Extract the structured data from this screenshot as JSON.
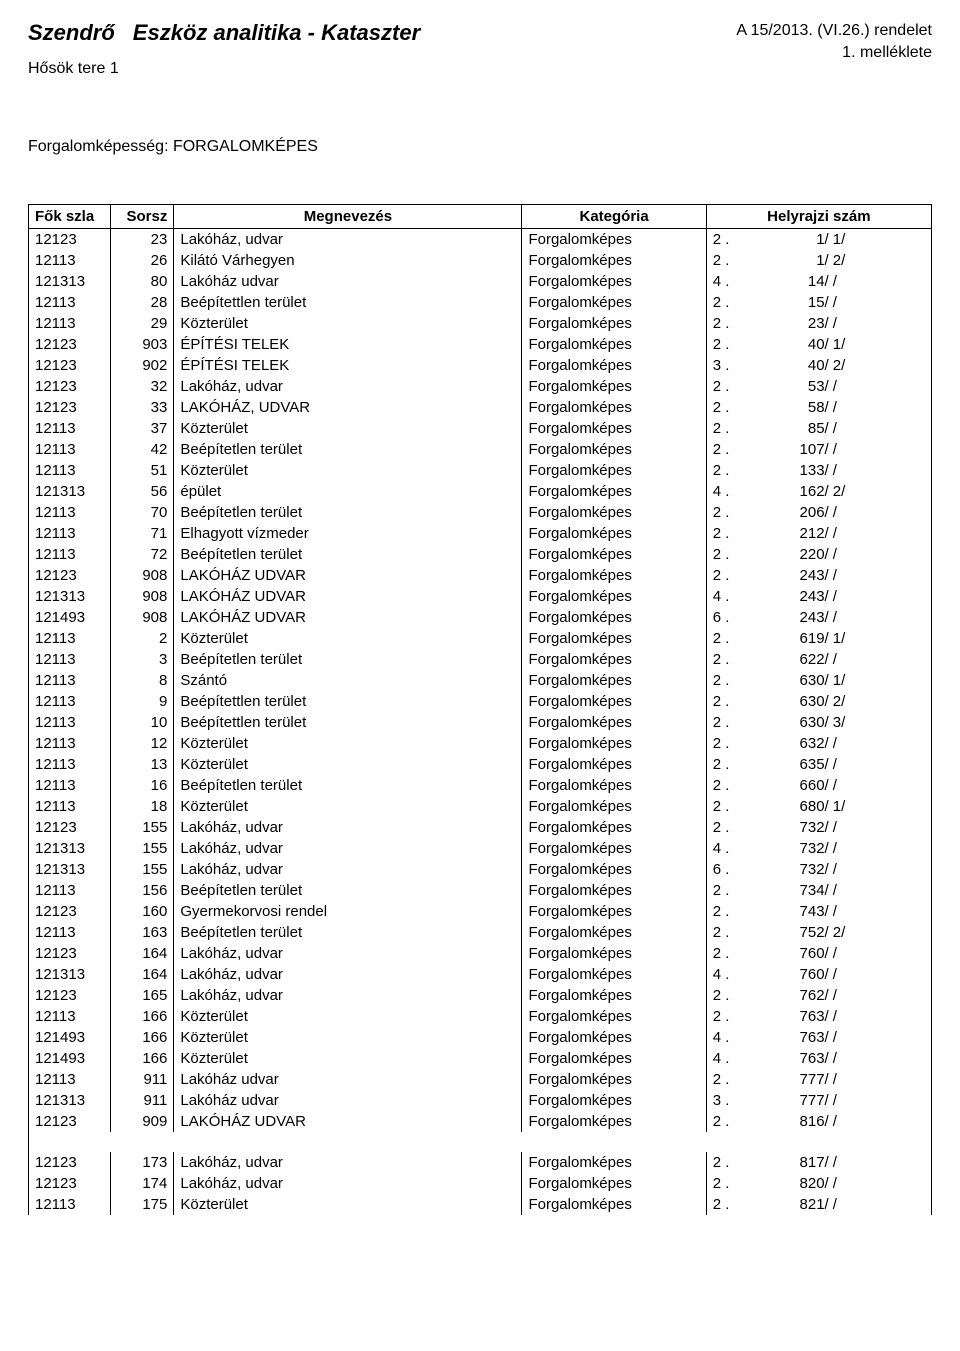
{
  "header": {
    "city": "Szendrő",
    "title": "Eszköz analitika - Kataszter",
    "subtitle": "Hősök tere 1",
    "ordinance_line1": "A 15/2013. (VI.26.) rendelet",
    "ordinance_line2": "1. melléklete"
  },
  "section": {
    "label": "Forgalomképesség: FORGALOMKÉPES"
  },
  "columns": [
    "Fők szla",
    "Sorsz",
    "Megnevezés",
    "Kategória",
    "Helyrajzi szám"
  ],
  "rows": [
    {
      "fok": "12123",
      "sorsz": "23",
      "meg": "Lakóház, udvar",
      "kat": "Forgalomképes",
      "h1": "2 .",
      "h2": "1/",
      "h3": "1/"
    },
    {
      "fok": "12113",
      "sorsz": "26",
      "meg": "Kilátó Várhegyen",
      "kat": "Forgalomképes",
      "h1": "2 .",
      "h2": "1/",
      "h3": "2/"
    },
    {
      "fok": "121313",
      "sorsz": "80",
      "meg": "Lakóház udvar",
      "kat": "Forgalomképes",
      "h1": "4 .",
      "h2": "14/",
      "h3": "/"
    },
    {
      "fok": "12113",
      "sorsz": "28",
      "meg": "Beépítettlen terület",
      "kat": "Forgalomképes",
      "h1": "2 .",
      "h2": "15/",
      "h3": "/"
    },
    {
      "fok": "12113",
      "sorsz": "29",
      "meg": "Közterület",
      "kat": "Forgalomképes",
      "h1": "2 .",
      "h2": "23/",
      "h3": "/"
    },
    {
      "fok": "12123",
      "sorsz": "903",
      "meg": "ÉPÍTÉSI TELEK",
      "kat": "Forgalomképes",
      "h1": "2 .",
      "h2": "40/",
      "h3": "1/"
    },
    {
      "fok": "12123",
      "sorsz": "902",
      "meg": "ÉPÍTÉSI TELEK",
      "kat": "Forgalomképes",
      "h1": "3 .",
      "h2": "40/",
      "h3": "2/"
    },
    {
      "fok": "12123",
      "sorsz": "32",
      "meg": "Lakóház, udvar",
      "kat": "Forgalomképes",
      "h1": "2 .",
      "h2": "53/",
      "h3": "/"
    },
    {
      "fok": "12123",
      "sorsz": "33",
      "meg": "LAKÓHÁZ, UDVAR",
      "kat": "Forgalomképes",
      "h1": "2 .",
      "h2": "58/",
      "h3": "/"
    },
    {
      "fok": "12113",
      "sorsz": "37",
      "meg": "Közterület",
      "kat": "Forgalomképes",
      "h1": "2 .",
      "h2": "85/",
      "h3": "/"
    },
    {
      "fok": "12113",
      "sorsz": "42",
      "meg": "Beépítetlen terület",
      "kat": "Forgalomképes",
      "h1": "2 .",
      "h2": "107/",
      "h3": "/"
    },
    {
      "fok": "12113",
      "sorsz": "51",
      "meg": "Közterület",
      "kat": "Forgalomképes",
      "h1": "2 .",
      "h2": "133/",
      "h3": "/"
    },
    {
      "fok": "121313",
      "sorsz": "56",
      "meg": "épület",
      "kat": "Forgalomképes",
      "h1": "4 .",
      "h2": "162/",
      "h3": "2/"
    },
    {
      "fok": "12113",
      "sorsz": "70",
      "meg": "Beépítetlen terület",
      "kat": "Forgalomképes",
      "h1": "2 .",
      "h2": "206/",
      "h3": "/"
    },
    {
      "fok": "12113",
      "sorsz": "71",
      "meg": "Elhagyott vízmeder",
      "kat": "Forgalomképes",
      "h1": "2 .",
      "h2": "212/",
      "h3": "/"
    },
    {
      "fok": "12113",
      "sorsz": "72",
      "meg": "Beépítetlen terület",
      "kat": "Forgalomképes",
      "h1": "2 .",
      "h2": "220/",
      "h3": "/"
    },
    {
      "fok": "12123",
      "sorsz": "908",
      "meg": "LAKÓHÁZ UDVAR",
      "kat": "Forgalomképes",
      "h1": "2 .",
      "h2": "243/",
      "h3": "/"
    },
    {
      "fok": "121313",
      "sorsz": "908",
      "meg": "LAKÓHÁZ UDVAR",
      "kat": "Forgalomképes",
      "h1": "4 .",
      "h2": "243/",
      "h3": "/"
    },
    {
      "fok": "121493",
      "sorsz": "908",
      "meg": "LAKÓHÁZ UDVAR",
      "kat": "Forgalomképes",
      "h1": "6 .",
      "h2": "243/",
      "h3": "/"
    },
    {
      "fok": "12113",
      "sorsz": "2",
      "meg": "Közterület",
      "kat": "Forgalomképes",
      "h1": "2 .",
      "h2": "619/",
      "h3": "1/"
    },
    {
      "fok": "12113",
      "sorsz": "3",
      "meg": "Beépítetlen terület",
      "kat": "Forgalomképes",
      "h1": "2 .",
      "h2": "622/",
      "h3": "/"
    },
    {
      "fok": "12113",
      "sorsz": "8",
      "meg": "Szántó",
      "kat": "Forgalomképes",
      "h1": "2 .",
      "h2": "630/",
      "h3": "1/"
    },
    {
      "fok": "12113",
      "sorsz": "9",
      "meg": "Beépítettlen terület",
      "kat": "Forgalomképes",
      "h1": "2 .",
      "h2": "630/",
      "h3": "2/"
    },
    {
      "fok": "12113",
      "sorsz": "10",
      "meg": "Beépítettlen terület",
      "kat": "Forgalomképes",
      "h1": "2 .",
      "h2": "630/",
      "h3": "3/"
    },
    {
      "fok": "12113",
      "sorsz": "12",
      "meg": "Közterület",
      "kat": "Forgalomképes",
      "h1": "2 .",
      "h2": "632/",
      "h3": "/"
    },
    {
      "fok": "12113",
      "sorsz": "13",
      "meg": "Közterület",
      "kat": "Forgalomképes",
      "h1": "2 .",
      "h2": "635/",
      "h3": "/"
    },
    {
      "fok": "12113",
      "sorsz": "16",
      "meg": "Beépítetlen terület",
      "kat": "Forgalomképes",
      "h1": "2 .",
      "h2": "660/",
      "h3": "/"
    },
    {
      "fok": "12113",
      "sorsz": "18",
      "meg": "Közterület",
      "kat": "Forgalomképes",
      "h1": "2 .",
      "h2": "680/",
      "h3": "1/"
    },
    {
      "fok": "12123",
      "sorsz": "155",
      "meg": "Lakóház, udvar",
      "kat": "Forgalomképes",
      "h1": "2 .",
      "h2": "732/",
      "h3": "/"
    },
    {
      "fok": "121313",
      "sorsz": "155",
      "meg": "Lakóház, udvar",
      "kat": "Forgalomképes",
      "h1": "4 .",
      "h2": "732/",
      "h3": "/"
    },
    {
      "fok": "121313",
      "sorsz": "155",
      "meg": "Lakóház, udvar",
      "kat": "Forgalomképes",
      "h1": "6 .",
      "h2": "732/",
      "h3": "/"
    },
    {
      "fok": "12113",
      "sorsz": "156",
      "meg": "Beépítetlen terület",
      "kat": "Forgalomképes",
      "h1": "2 .",
      "h2": "734/",
      "h3": "/"
    },
    {
      "fok": "12123",
      "sorsz": "160",
      "meg": "Gyermekorvosi rendel",
      "kat": "Forgalomképes",
      "h1": "2 .",
      "h2": "743/",
      "h3": "/"
    },
    {
      "fok": "12113",
      "sorsz": "163",
      "meg": "Beépítetlen terület",
      "kat": "Forgalomképes",
      "h1": "2 .",
      "h2": "752/",
      "h3": "2/"
    },
    {
      "fok": "12123",
      "sorsz": "164",
      "meg": "Lakóház, udvar",
      "kat": "Forgalomképes",
      "h1": "2 .",
      "h2": "760/",
      "h3": "/"
    },
    {
      "fok": "121313",
      "sorsz": "164",
      "meg": "Lakóház, udvar",
      "kat": "Forgalomképes",
      "h1": "4 .",
      "h2": "760/",
      "h3": "/"
    },
    {
      "fok": "12123",
      "sorsz": "165",
      "meg": "Lakóház, udvar",
      "kat": "Forgalomképes",
      "h1": "2 .",
      "h2": "762/",
      "h3": "/"
    },
    {
      "fok": "12113",
      "sorsz": "166",
      "meg": "Közterület",
      "kat": "Forgalomképes",
      "h1": "2 .",
      "h2": "763/",
      "h3": "/"
    },
    {
      "fok": "121493",
      "sorsz": "166",
      "meg": "Közterület",
      "kat": "Forgalomképes",
      "h1": "4 .",
      "h2": "763/",
      "h3": "/"
    },
    {
      "fok": "121493",
      "sorsz": "166",
      "meg": "Közterület",
      "kat": "Forgalomképes",
      "h1": "4 .",
      "h2": "763/",
      "h3": "/"
    },
    {
      "fok": "12113",
      "sorsz": "911",
      "meg": "Lakóház udvar",
      "kat": "Forgalomképes",
      "h1": "2 .",
      "h2": "777/",
      "h3": "/"
    },
    {
      "fok": "121313",
      "sorsz": "911",
      "meg": "Lakóház udvar",
      "kat": "Forgalomképes",
      "h1": "3 .",
      "h2": "777/",
      "h3": "/"
    },
    {
      "fok": "12123",
      "sorsz": "909",
      "meg": "LAKÓHÁZ UDVAR",
      "kat": "Forgalomképes",
      "h1": "2 .",
      "h2": "816/",
      "h3": "/"
    }
  ],
  "rows2": [
    {
      "fok": "12123",
      "sorsz": "173",
      "meg": "Lakóház, udvar",
      "kat": "Forgalomképes",
      "h1": "2 .",
      "h2": "817/",
      "h3": "/"
    },
    {
      "fok": "12123",
      "sorsz": "174",
      "meg": "Lakóház, udvar",
      "kat": "Forgalomképes",
      "h1": "2 .",
      "h2": "820/",
      "h3": "/"
    },
    {
      "fok": "12113",
      "sorsz": "175",
      "meg": "Közterület",
      "kat": "Forgalomképes",
      "h1": "2 .",
      "h2": "821/",
      "h3": "/"
    }
  ]
}
